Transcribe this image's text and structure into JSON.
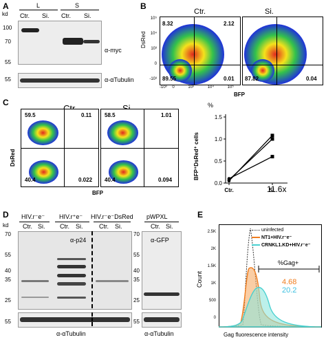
{
  "panels": {
    "A": "A",
    "B": "B",
    "C": "C",
    "D": "D",
    "E": "E"
  },
  "panelA": {
    "kd": "kd",
    "groups": [
      "L",
      "S"
    ],
    "lanes": [
      "Ctr.",
      "Si.",
      "Ctr.",
      "Si."
    ],
    "markers": [
      "100",
      "70",
      "55",
      "55"
    ],
    "labels": [
      "α-myc",
      "α-αTubulin"
    ]
  },
  "panelB": {
    "titles": [
      "Ctr.",
      "Si."
    ],
    "ctr_q": [
      "8.32",
      "2.12",
      "89.55",
      "0.01"
    ],
    "si_q": [
      "87.82",
      "0.04"
    ],
    "ylabel": "DsRed",
    "xlabel": "BFP",
    "yticks": [
      "10⁵",
      "10⁴",
      "10³",
      "0",
      "-10³"
    ],
    "xticks": [
      "-10³",
      "0",
      "10³",
      "10⁴",
      "10⁵"
    ]
  },
  "panelC": {
    "titles": [
      "Ctr.",
      "Si."
    ],
    "ctr_q": [
      "59.5",
      "0.11",
      "40.4",
      "0.022"
    ],
    "si_q": [
      "58.5",
      "1.01",
      "40.4",
      "0.094"
    ],
    "ylabel": "DsRed",
    "xlabel": "BFP",
    "chart_title": "%",
    "fold": "11.6x"
  },
  "chart_data": {
    "type": "line",
    "categories": [
      "Ctr.",
      "Si."
    ],
    "series": [
      {
        "values": [
          0.05,
          1.08
        ]
      },
      {
        "values": [
          0.07,
          1.0
        ]
      },
      {
        "values": [
          0.1,
          0.6
        ]
      }
    ],
    "ylabel": "BFP⁺DsRed⁺ cells",
    "yticks": [
      "0.0",
      "0.5",
      "1.0",
      "1.5"
    ],
    "ylim": [
      0,
      1.5
    ]
  },
  "panelD": {
    "kd": "kd",
    "groups": [
      "HIV.r⁻e⁻",
      "HIV.r⁺e⁻",
      "HIV.r⁻e⁻DsRed",
      "pWPXL"
    ],
    "lanes": [
      "Ctr.",
      "Si.",
      "Ctr.",
      "Si.",
      "Ctr.",
      "Si.",
      "Ctr.",
      "Si."
    ],
    "markers": [
      "70",
      "55",
      "40",
      "35",
      "25",
      "55"
    ],
    "markers_right": [
      "70",
      "55",
      "40",
      "35",
      "25",
      "55"
    ],
    "labels": [
      "α-p24",
      "α-GFP",
      "α-αTubulin",
      "α-αTubulin"
    ]
  },
  "panelE": {
    "legend": [
      "uninfected",
      "NT1+HIV.r⁻e⁻",
      "CRNKL1.KD+HIV.r⁻e⁻"
    ],
    "ylabel": "Count",
    "xlabel": "Gag fluorescence intensity",
    "gate_label": "%Gag+",
    "values": [
      "4.68",
      "20.2"
    ],
    "colors": {
      "uninfected": "#333333",
      "nt1": "#f07d1f",
      "kd": "#48d0d0",
      "nt1_text": "#f07d1f",
      "kd_text": "#3cc0e0"
    },
    "yticks": [
      "2.5K",
      "2K",
      "1.5K",
      "1K",
      "500",
      "0"
    ]
  },
  "colors": {
    "heat_red": "#e0281e",
    "heat_yellow": "#f5e21c",
    "heat_green": "#33c24b",
    "heat_blue": "#2034d8"
  }
}
